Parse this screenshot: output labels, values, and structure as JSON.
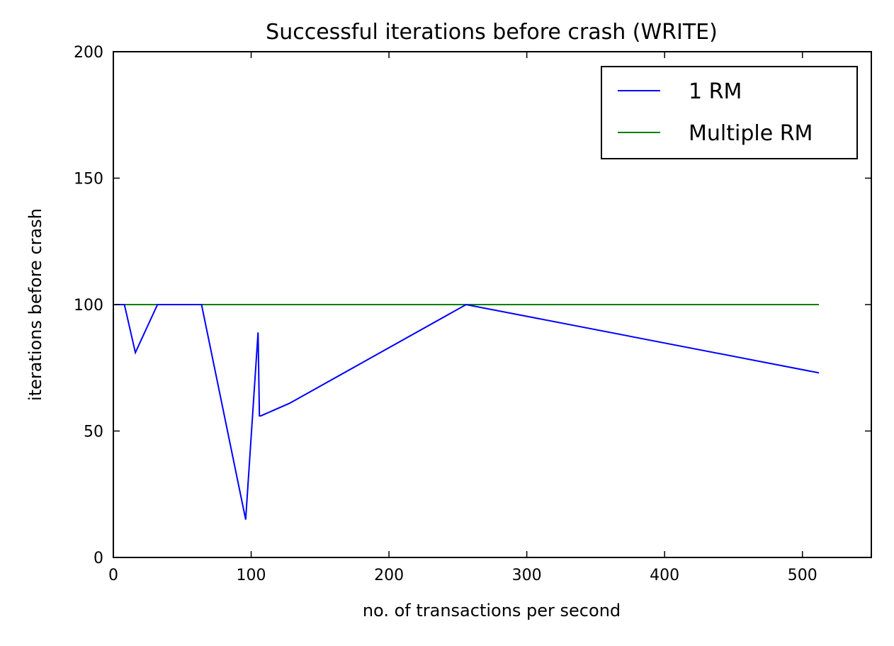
{
  "chart_data": {
    "type": "line",
    "title": "Successful iterations before crash (WRITE)",
    "xlabel": "no. of transactions per second",
    "ylabel": "iterations before crash",
    "xlim": [
      0,
      550
    ],
    "ylim": [
      0,
      200
    ],
    "xticks": [
      0,
      100,
      200,
      300,
      400,
      500
    ],
    "yticks": [
      0,
      50,
      100,
      150,
      200
    ],
    "grid": false,
    "legend_position": "top-right",
    "series": [
      {
        "name": "1 RM",
        "color": "#0000ff",
        "x": [
          1,
          2,
          4,
          8,
          16,
          32,
          64,
          96,
          105,
          106,
          107,
          128,
          256,
          512
        ],
        "y": [
          100,
          100,
          100,
          100,
          81,
          100,
          100,
          15,
          89,
          56,
          56,
          61,
          100,
          73
        ]
      },
      {
        "name": "Multiple RM",
        "color": "#008000",
        "x": [
          1,
          2,
          4,
          8,
          16,
          32,
          64,
          96,
          105,
          106,
          107,
          128,
          256,
          512
        ],
        "y": [
          100,
          100,
          100,
          100,
          100,
          100,
          100,
          100,
          100,
          100,
          100,
          100,
          100,
          100
        ]
      }
    ]
  }
}
